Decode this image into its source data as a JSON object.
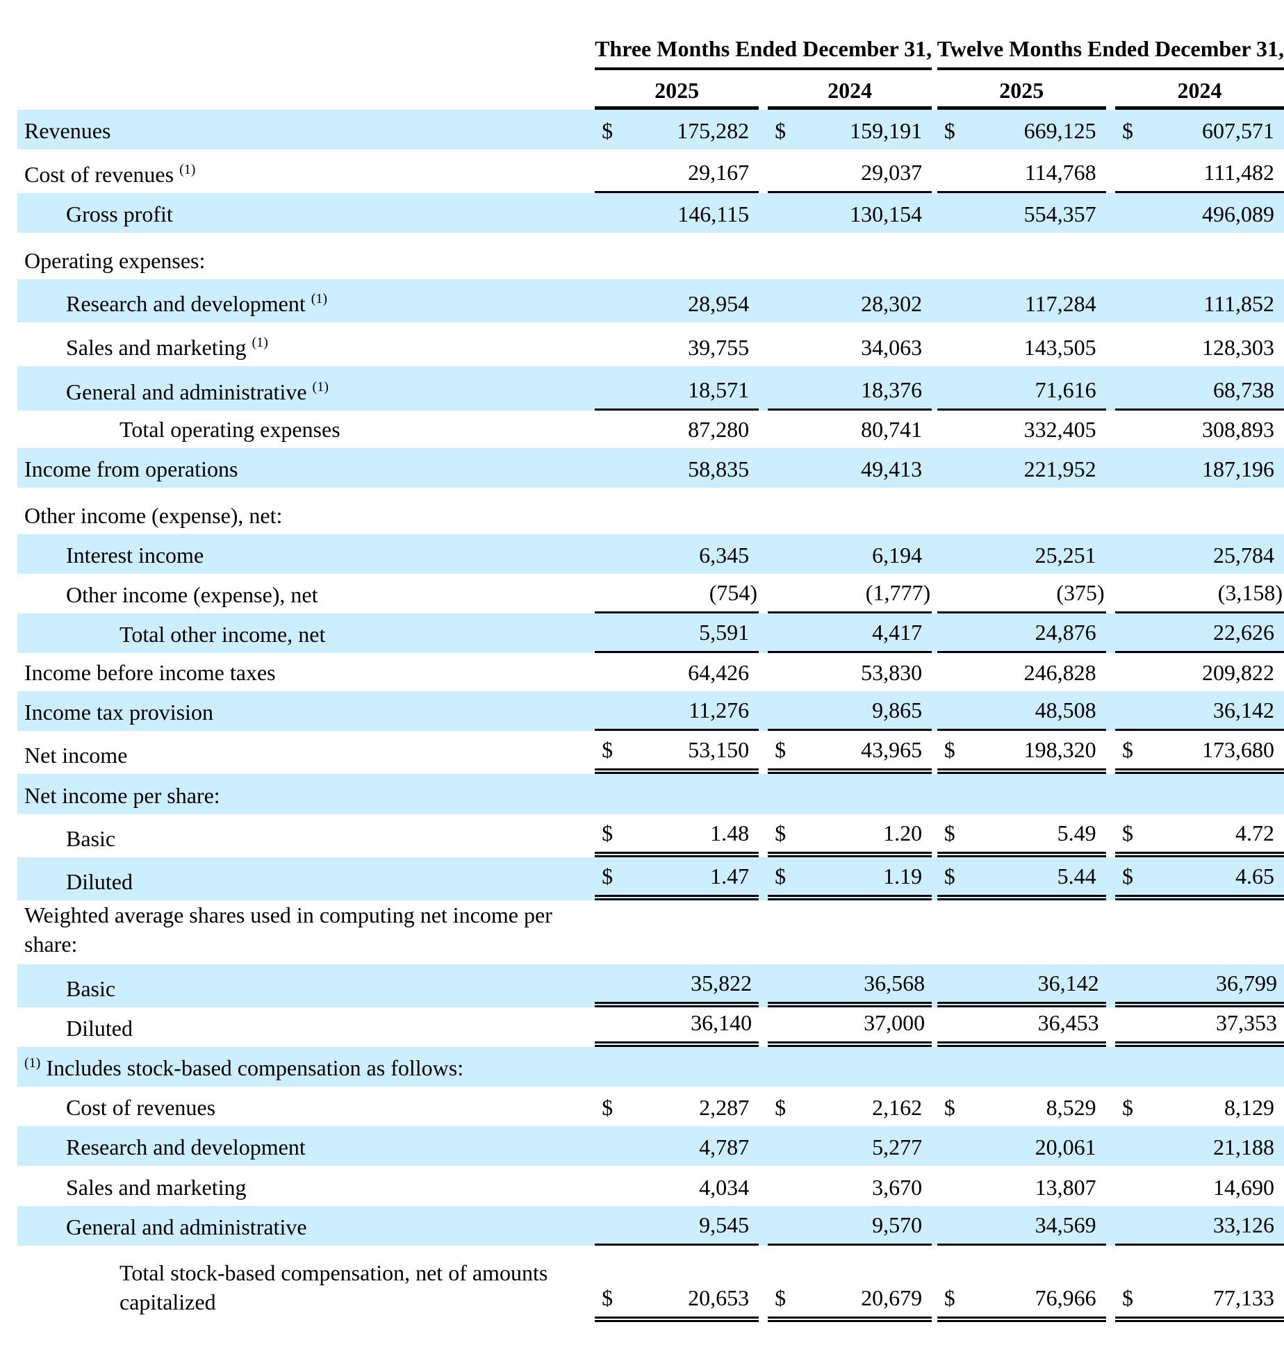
{
  "header": {
    "three_months": "Three Months Ended December 31,",
    "twelve_months": "Twelve Months Ended December 31,",
    "years": [
      "2025",
      "2024",
      "2025",
      "2024"
    ]
  },
  "rows": [
    {
      "label": "Revenues",
      "note": "",
      "values": [
        "$|175,282",
        "$|159,191",
        "$|669,125",
        "$|607,571"
      ]
    },
    {
      "label": "Cost of revenues",
      "note": "(1)",
      "values": [
        "29,167",
        "29,037",
        "114,768",
        "111,482"
      ]
    },
    {
      "label": "Gross profit",
      "note": "",
      "values": [
        "146,115",
        "130,154",
        "554,357",
        "496,089"
      ]
    },
    {
      "label": "Operating expenses:",
      "note": "",
      "values": []
    },
    {
      "label": "Research and development",
      "note": "(1)",
      "values": [
        "28,954",
        "28,302",
        "117,284",
        "111,852"
      ]
    },
    {
      "label": "Sales and marketing",
      "note": "(1)",
      "values": [
        "39,755",
        "34,063",
        "143,505",
        "128,303"
      ]
    },
    {
      "label": "General and administrative",
      "note": "(1)",
      "values": [
        "18,571",
        "18,376",
        "71,616",
        "68,738"
      ]
    },
    {
      "label": "Total operating expenses",
      "note": "",
      "values": [
        "87,280",
        "80,741",
        "332,405",
        "308,893"
      ]
    },
    {
      "label": "Income from operations",
      "note": "",
      "values": [
        "58,835",
        "49,413",
        "221,952",
        "187,196"
      ]
    },
    {
      "label": "Other income (expense), net:",
      "note": "",
      "values": []
    },
    {
      "label": "Interest income",
      "note": "",
      "values": [
        "6,345",
        "6,194",
        "25,251",
        "25,784"
      ]
    },
    {
      "label": "Other income (expense), net",
      "note": "",
      "values": [
        "(754)",
        "(1,777)",
        "(375)",
        "(3,158)"
      ]
    },
    {
      "label": "Total other income, net",
      "note": "",
      "values": [
        "5,591",
        "4,417",
        "24,876",
        "22,626"
      ]
    },
    {
      "label": "Income before income taxes",
      "note": "",
      "values": [
        "64,426",
        "53,830",
        "246,828",
        "209,822"
      ]
    },
    {
      "label": "Income tax provision",
      "note": "",
      "values": [
        "11,276",
        "9,865",
        "48,508",
        "36,142"
      ]
    },
    {
      "label": "Net income",
      "note": "",
      "values": [
        "$|53,150",
        "$|43,965",
        "$|198,320",
        "$|173,680"
      ]
    },
    {
      "label": "Net income per share:",
      "note": "",
      "values": []
    },
    {
      "label": "Basic",
      "note": "",
      "values": [
        "$|1.48",
        "$|1.20",
        "$|5.49",
        "$|4.72"
      ]
    },
    {
      "label": "Diluted",
      "note": "",
      "values": [
        "$|1.47",
        "$|1.19",
        "$|5.44",
        "$|4.65"
      ]
    },
    {
      "label": "Weighted average shares used in computing net income per share:",
      "note": "",
      "values": []
    },
    {
      "label": "Basic",
      "note": "",
      "values": [
        "35,822",
        "36,568",
        "36,142",
        "36,799"
      ]
    },
    {
      "label": "Diluted",
      "note": "",
      "values": [
        "36,140",
        "37,000",
        "36,453",
        "37,353"
      ]
    },
    {
      "label": "Includes stock-based compensation as follows:",
      "note": "(1)",
      "values": []
    },
    {
      "label": "Cost of revenues",
      "note": "",
      "values": [
        "$|2,287",
        "$|2,162",
        "$|8,529",
        "$|8,129"
      ]
    },
    {
      "label": "Research and development",
      "note": "",
      "values": [
        "4,787",
        "5,277",
        "20,061",
        "21,188"
      ]
    },
    {
      "label": "Sales and marketing",
      "note": "",
      "values": [
        "4,034",
        "3,670",
        "13,807",
        "14,690"
      ]
    },
    {
      "label": "General and administrative",
      "note": "",
      "values": [
        "9,545",
        "9,570",
        "34,569",
        "33,126"
      ]
    },
    {
      "label": "Total stock-based compensation, net of amounts capitalized",
      "note": "",
      "values": [
        "$|20,653",
        "$|20,679",
        "$|76,966",
        "$|77,133"
      ]
    }
  ],
  "colors": {
    "row_shade": "#cceeff",
    "text": "#000000"
  }
}
